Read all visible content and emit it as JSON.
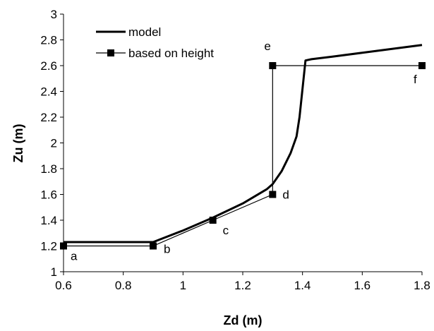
{
  "chart_data": {
    "type": "line",
    "xlabel": "Zd (m)",
    "ylabel": "Zu (m)",
    "xlim": [
      0.6,
      1.8
    ],
    "ylim": [
      1,
      3
    ],
    "xticks": [
      0.6,
      0.8,
      1,
      1.2,
      1.4,
      1.6,
      1.8
    ],
    "xtick_labels": [
      "0.6",
      "0.8",
      "1",
      "1.2",
      "1.4",
      "1.6",
      "1.8"
    ],
    "yticks": [
      1,
      1.2,
      1.4,
      1.6,
      1.8,
      2,
      2.2,
      2.4,
      2.6,
      2.8,
      3
    ],
    "ytick_labels": [
      "1",
      "1.2",
      "1.4",
      "1.6",
      "1.8",
      "2",
      "2.2",
      "2.4",
      "2.6",
      "2.8",
      "3"
    ],
    "grid": false,
    "legend_position": "top-left",
    "series": [
      {
        "name": "model",
        "color": "#000000",
        "style": "thick-line",
        "points": [
          [
            0.6,
            1.23
          ],
          [
            0.9,
            1.23
          ],
          [
            1.0,
            1.32
          ],
          [
            1.1,
            1.42
          ],
          [
            1.2,
            1.53
          ],
          [
            1.28,
            1.64
          ],
          [
            1.3,
            1.68
          ],
          [
            1.33,
            1.78
          ],
          [
            1.36,
            1.92
          ],
          [
            1.38,
            2.05
          ],
          [
            1.39,
            2.2
          ],
          [
            1.4,
            2.42
          ],
          [
            1.41,
            2.64
          ],
          [
            1.43,
            2.65
          ],
          [
            1.5,
            2.67
          ],
          [
            1.6,
            2.7
          ],
          [
            1.7,
            2.73
          ],
          [
            1.8,
            2.76
          ]
        ]
      },
      {
        "name": "based on height",
        "color": "#000000",
        "style": "line-square-markers",
        "points": [
          [
            0.6,
            1.2
          ],
          [
            0.9,
            1.2
          ],
          [
            1.1,
            1.4
          ],
          [
            1.3,
            1.6
          ],
          [
            1.3,
            2.6
          ],
          [
            1.8,
            2.6
          ]
        ],
        "point_labels": [
          "a",
          "b",
          "c",
          "d",
          "e",
          "f"
        ]
      }
    ]
  }
}
